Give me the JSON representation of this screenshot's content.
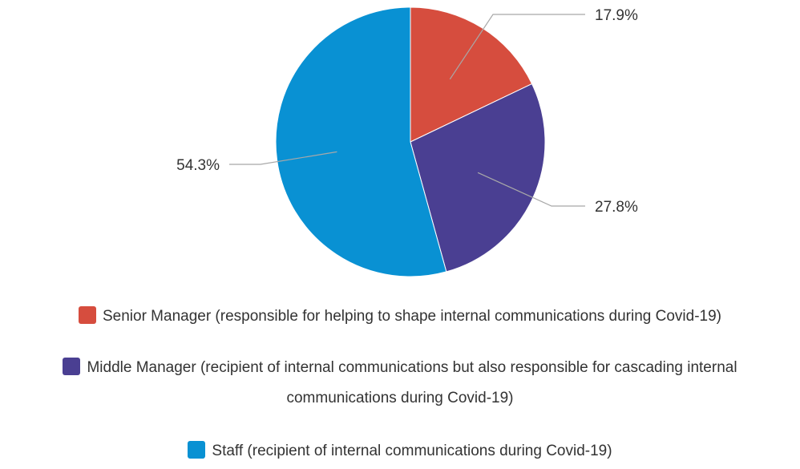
{
  "chart_data": {
    "type": "pie",
    "title": "",
    "categories": [
      "Senior Manager (responsible for helping to shape internal communications during Covid-19)",
      "Middle Manager (recipient of internal communications but also responsible for cascading internal communications during Covid-19)",
      "Staff (recipient of internal communications during Covid-19)"
    ],
    "values": [
      17.9,
      27.8,
      54.3
    ],
    "data_labels": [
      "17.9%",
      "27.8%",
      "54.3%"
    ],
    "colors": [
      "#d64d3e",
      "#4a3f92",
      "#0991d3"
    ],
    "legend_position": "bottom"
  }
}
